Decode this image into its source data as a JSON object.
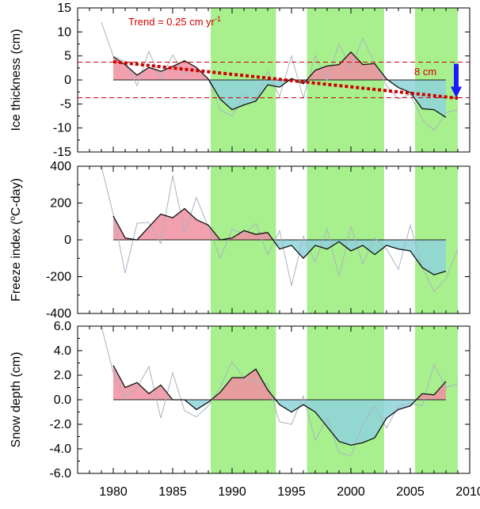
{
  "colors": {
    "green_band": "#a8f08e",
    "positive_fill": "#f08fa0",
    "negative_fill": "#8fd3dc",
    "line_anomaly": "#111111",
    "line_raw": "#a9b4c0",
    "trend": "#cc0000",
    "arrow": "#1a1aff",
    "red_text": "#d40000"
  },
  "chart_data": [
    {
      "id": "ice",
      "type": "area",
      "ylabel": "Ice thickness (cm)",
      "ylim": [
        -15,
        15
      ],
      "yticks": [
        15,
        10,
        5,
        0,
        -5,
        -10,
        -15
      ],
      "ytick_labels": [
        "15",
        "10",
        "5",
        "0",
        "-5",
        "-10",
        "-15"
      ],
      "xlim": [
        1977,
        2010
      ],
      "green_bands": [
        [
          1988.2,
          1993.7
        ],
        [
          1996.3,
          2002.8
        ],
        [
          2005.4,
          2009.0
        ]
      ],
      "series": [
        {
          "role": "smoothed",
          "x": [
            1980,
            1981,
            1982,
            1983,
            1984,
            1985,
            1986,
            1987,
            1988,
            1989,
            1990,
            1991,
            1992,
            1993,
            1994,
            1995,
            1996,
            1997,
            1998,
            1999,
            2000,
            2001,
            2002,
            2003,
            2004,
            2005,
            2006,
            2007,
            2008
          ],
          "values": [
            4.8,
            3.2,
            1.0,
            2.6,
            1.8,
            2.8,
            4.0,
            2.6,
            0.2,
            -4.0,
            -6.2,
            -5.2,
            -4.4,
            -1.0,
            -1.5,
            0.3,
            -0.8,
            2.0,
            2.9,
            3.2,
            5.8,
            3.2,
            3.4,
            0.2,
            -1.6,
            -2.6,
            -6.0,
            -6.2,
            -7.8
          ]
        },
        {
          "role": "raw",
          "x": [
            1979,
            1980,
            1981,
            1982,
            1983,
            1984,
            1985,
            1986,
            1987,
            1988,
            1989,
            1990,
            1991,
            1992,
            1993,
            1994,
            1995,
            1996,
            1997,
            1998,
            1999,
            2000,
            2001,
            2002,
            2003,
            2004,
            2005,
            2006,
            2007,
            2008,
            2009
          ],
          "values": [
            12.0,
            5.0,
            3.8,
            -1.2,
            6.0,
            0.2,
            5.2,
            1.2,
            2.5,
            0.2,
            -6.3,
            -7.5,
            -3.2,
            -4.2,
            1.8,
            -3.5,
            5.0,
            -3.8,
            5.1,
            -0.2,
            7.5,
            2.5,
            8.7,
            3.5,
            -1.2,
            -4.0,
            -3.0,
            -8.2,
            -10.5,
            -6.8,
            -6.2
          ]
        }
      ],
      "trend_line": {
        "x": [
          1980,
          2009
        ],
        "values": [
          3.8,
          -3.8
        ],
        "label": "Trend = 0.25 cm yr",
        "label_superscript": "-1"
      },
      "envelope": {
        "upper": 3.7,
        "lower": -3.7
      },
      "arrow_label": "8 cm"
    },
    {
      "id": "freeze",
      "type": "area",
      "ylabel": "Freeze index (",
      "ylabel_degree": "o",
      "ylabel_rest": "C-day)",
      "ylim": [
        -400,
        400
      ],
      "yticks": [
        400,
        200,
        0,
        -200,
        -400
      ],
      "ytick_labels": [
        "400",
        "200",
        "0",
        "-200",
        "-400"
      ],
      "xlim": [
        1977,
        2010
      ],
      "green_bands": [
        [
          1988.2,
          1993.7
        ],
        [
          1996.3,
          2002.8
        ],
        [
          2005.4,
          2009.0
        ]
      ],
      "series": [
        {
          "role": "smoothed",
          "x": [
            1980,
            1981,
            1982,
            1983,
            1984,
            1985,
            1986,
            1987,
            1988,
            1989,
            1990,
            1991,
            1992,
            1993,
            1994,
            1995,
            1996,
            1997,
            1998,
            1999,
            2000,
            2001,
            2002,
            2003,
            2004,
            2005,
            2006,
            2007,
            2008
          ],
          "values": [
            130,
            10,
            0,
            70,
            140,
            120,
            170,
            110,
            80,
            0,
            10,
            50,
            30,
            40,
            -50,
            -30,
            -100,
            -30,
            -50,
            -10,
            -60,
            -30,
            -80,
            -30,
            -50,
            -60,
            -150,
            -190,
            -170
          ]
        },
        {
          "role": "raw",
          "x": [
            1979,
            1980,
            1981,
            1982,
            1983,
            1984,
            1985,
            1986,
            1987,
            1988,
            1989,
            1990,
            1991,
            1992,
            1993,
            1994,
            1995,
            1996,
            1997,
            1998,
            1999,
            2000,
            2001,
            2002,
            2003,
            2004,
            2005,
            2006,
            2007,
            2008,
            2009
          ],
          "values": [
            400,
            140,
            -180,
            90,
            95,
            -20,
            350,
            40,
            230,
            70,
            -100,
            60,
            30,
            90,
            -80,
            50,
            -250,
            20,
            -120,
            60,
            -200,
            70,
            -130,
            10,
            -50,
            -160,
            80,
            -150,
            -280,
            -210,
            -50
          ]
        }
      ]
    },
    {
      "id": "snow",
      "type": "area",
      "ylabel": "Snow depth (cm)",
      "ylim": [
        -6,
        6
      ],
      "yticks": [
        6,
        4,
        2,
        0,
        -2,
        -4,
        -6
      ],
      "ytick_labels": [
        "6.0",
        "4.0",
        "2.0",
        "0.0",
        "-2.0",
        "-4.0",
        "-6.0"
      ],
      "xlim": [
        1977,
        2010
      ],
      "xticks": [
        1980,
        1985,
        1990,
        1995,
        2000,
        2005,
        2010
      ],
      "green_bands": [
        [
          1988.2,
          1993.7
        ],
        [
          1996.3,
          2002.8
        ],
        [
          2005.4,
          2009.0
        ]
      ],
      "series": [
        {
          "role": "smoothed",
          "x": [
            1980,
            1981,
            1982,
            1983,
            1984,
            1985,
            1986,
            1987,
            1988,
            1989,
            1990,
            1991,
            1992,
            1993,
            1994,
            1995,
            1996,
            1997,
            1998,
            1999,
            2000,
            2001,
            2002,
            2003,
            2004,
            2005,
            2006,
            2007,
            2008
          ],
          "values": [
            2.8,
            1.0,
            1.4,
            0.5,
            1.2,
            0.0,
            0.0,
            -0.8,
            -0.2,
            0.6,
            1.8,
            1.8,
            2.5,
            0.8,
            -0.4,
            -1.0,
            -0.4,
            -1.0,
            -2.2,
            -3.4,
            -3.7,
            -3.5,
            -3.1,
            -1.5,
            -0.8,
            -0.5,
            0.5,
            0.4,
            1.5
          ]
        },
        {
          "role": "raw",
          "x": [
            1979,
            1980,
            1981,
            1982,
            1983,
            1984,
            1985,
            1986,
            1987,
            1988,
            1989,
            1990,
            1991,
            1992,
            1993,
            1994,
            1995,
            1996,
            1997,
            1998,
            1999,
            2000,
            2001,
            2002,
            2003,
            2004,
            2005,
            2006,
            2007,
            2008,
            2009
          ],
          "values": [
            6.0,
            2.2,
            0.2,
            1.0,
            2.7,
            -1.5,
            2.2,
            -0.9,
            -1.4,
            -0.5,
            1.0,
            3.1,
            1.8,
            1.5,
            1.3,
            -1.8,
            -2.0,
            0.3,
            -3.3,
            -1.5,
            -4.3,
            -4.6,
            -2.0,
            -0.5,
            -2.3,
            -0.5,
            -0.3,
            -0.5,
            2.9,
            1.0,
            1.3
          ]
        }
      ]
    }
  ]
}
